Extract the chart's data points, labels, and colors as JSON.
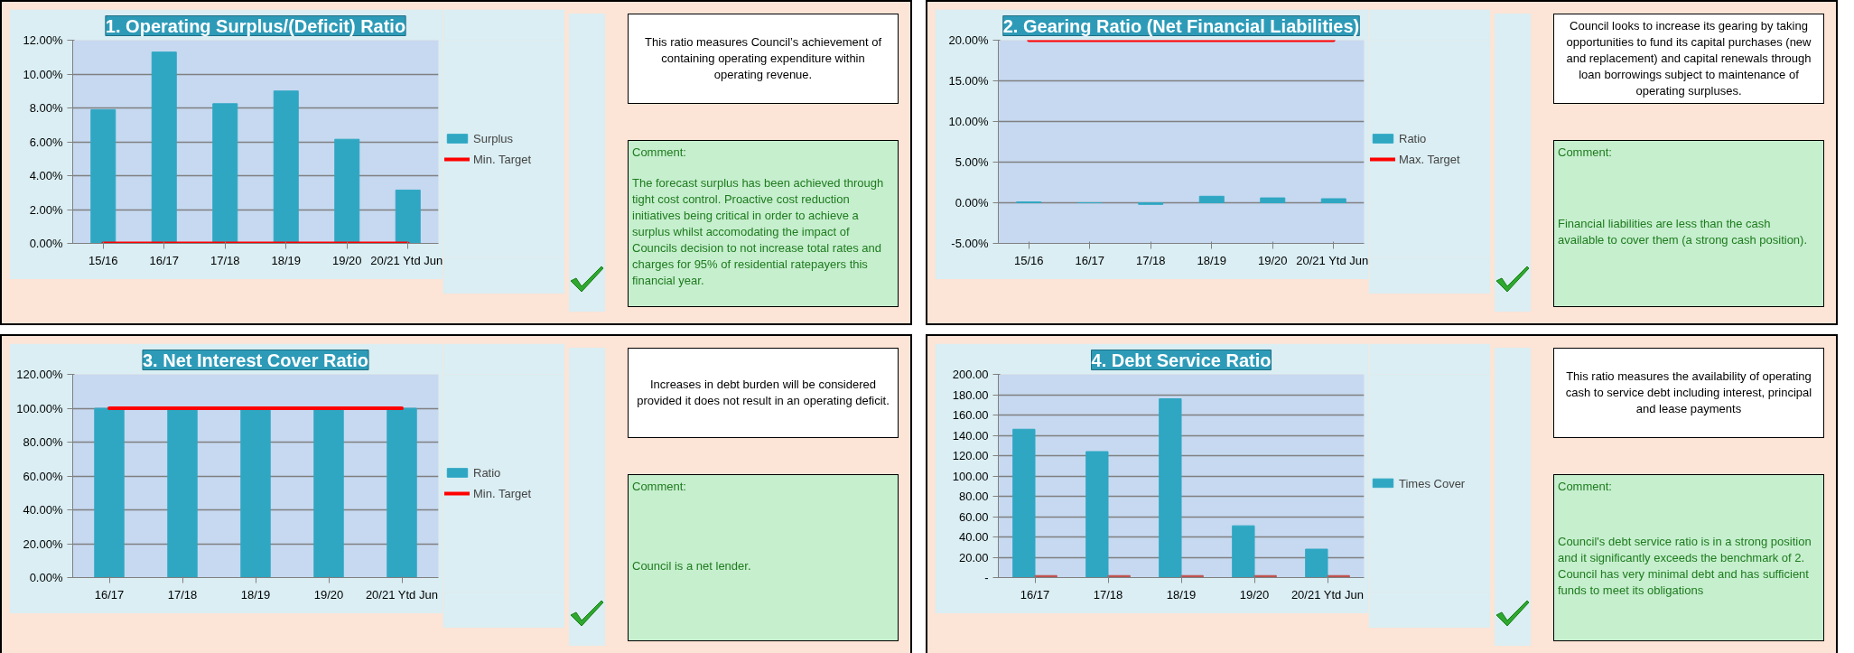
{
  "chart_data": [
    {
      "type": "bar",
      "title": "1. Operating Surplus/(Deficit) Ratio",
      "categories": [
        "15/16",
        "16/17",
        "17/18",
        "18/19",
        "19/20",
        "20/21 Ytd Jun"
      ],
      "series": [
        {
          "name": "Surplus",
          "color": "#2fa7c3",
          "values": [
            7.9,
            11.3,
            8.25,
            9.0,
            6.15,
            3.15
          ]
        },
        {
          "name": "Min. Target",
          "type": "line",
          "color": "#ff0000",
          "values": [
            0,
            0,
            0,
            0,
            0,
            0
          ]
        }
      ],
      "ylim": [
        0,
        12
      ],
      "yticks": [
        {
          "value": 0,
          "label": "0.00%"
        },
        {
          "value": 2,
          "label": "2.00%"
        },
        {
          "value": 4,
          "label": "4.00%"
        },
        {
          "value": 6,
          "label": "6.00%"
        },
        {
          "value": 8,
          "label": "8.00%"
        },
        {
          "value": 10,
          "label": "10.00%"
        },
        {
          "value": 12,
          "label": "12.00%"
        }
      ],
      "grid": "y",
      "legend": "right",
      "annotations": [
        "This ratio measures Council’s achievement of containing operating expenditure within operating revenue.",
        "Comment:",
        "The  forecast surplus has been achieved through tight cost control. Proactive cost reduction initiatives being critical in order to achieve a surplus whilst accomodating the impact of Councils decision to not increase total rates and charges for 95% of residential ratepayers this financial year."
      ]
    },
    {
      "type": "bar",
      "title": "2. Gearing Ratio (Net Financial Liabilities)",
      "categories": [
        "15/16",
        "16/17",
        "17/18",
        "18/19",
        "19/20",
        "20/21 Ytd Jun"
      ],
      "series": [
        {
          "name": "Ratio",
          "color": "#2fa7c3",
          "values": [
            0.1,
            0.0,
            -0.2,
            0.8,
            0.6,
            0.5
          ]
        },
        {
          "name": "Max. Target",
          "type": "line",
          "color": "#ff0000",
          "values": [
            20,
            20,
            20,
            20,
            20,
            20
          ]
        }
      ],
      "ylim": [
        -5,
        20
      ],
      "yticks": [
        {
          "value": -5,
          "label": "-5.00%"
        },
        {
          "value": 0,
          "label": "0.00%"
        },
        {
          "value": 5,
          "label": "5.00%"
        },
        {
          "value": 10,
          "label": "10.00%"
        },
        {
          "value": 15,
          "label": "15.00%"
        },
        {
          "value": 20,
          "label": "20.00%"
        }
      ],
      "grid": "y",
      "legend": "right",
      "annotations": [
        "Council looks to increase its gearing by taking opportunities to fund its capital purchases (new and replacement) and capital renewals through loan borrowings subject to maintenance of operating surpluses.",
        "Comment:",
        "Financial liabilities are less than the cash available to cover them (a strong cash position)."
      ]
    },
    {
      "type": "bar",
      "title": "3. Net Interest Cover Ratio",
      "categories": [
        "16/17",
        "17/18",
        "18/19",
        "19/20",
        "20/21 Ytd Jun"
      ],
      "series": [
        {
          "name": "Ratio",
          "color": "#2fa7c3",
          "values": [
            100,
            100,
            100,
            100,
            100
          ]
        },
        {
          "name": "Min. Target",
          "type": "line",
          "color": "#ff0000",
          "values": [
            100,
            100,
            100,
            100,
            100
          ]
        }
      ],
      "ylim": [
        0,
        120
      ],
      "yticks": [
        {
          "value": 0,
          "label": "0.00%"
        },
        {
          "value": 20,
          "label": "20.00%"
        },
        {
          "value": 40,
          "label": "40.00%"
        },
        {
          "value": 60,
          "label": "60.00%"
        },
        {
          "value": 80,
          "label": "80.00%"
        },
        {
          "value": 100,
          "label": "100.00%"
        },
        {
          "value": 120,
          "label": "120.00%"
        }
      ],
      "grid": "y",
      "legend": "right",
      "annotations": [
        "Increases in debt burden will be considered provided it does not result in an operating deficit.",
        "Comment:",
        "Council is a net lender."
      ]
    },
    {
      "type": "bar",
      "title": "4. Debt Service Ratio",
      "categories": [
        "16/17",
        "17/18",
        "18/19",
        "19/20",
        "20/21 Ytd Jun"
      ],
      "series": [
        {
          "name": "Times Cover",
          "color": "#2fa7c3",
          "values": [
            146,
            124,
            176,
            51,
            28
          ]
        },
        {
          "color": "#c0504d",
          "values": [
            2,
            2,
            2,
            2,
            2
          ]
        }
      ],
      "ylim": [
        0,
        200
      ],
      "yticks": [
        {
          "value": 0,
          "label": "-"
        },
        {
          "value": 20,
          "label": "20.00"
        },
        {
          "value": 40,
          "label": "40.00"
        },
        {
          "value": 60,
          "label": "60.00"
        },
        {
          "value": 80,
          "label": "80.00"
        },
        {
          "value": 100,
          "label": "100.00"
        },
        {
          "value": 120,
          "label": "120.00"
        },
        {
          "value": 140,
          "label": "140.00"
        },
        {
          "value": 160,
          "label": "160.00"
        },
        {
          "value": 180,
          "label": "180.00"
        },
        {
          "value": 200,
          "label": "200.00"
        }
      ],
      "grid": "y",
      "legend": "right",
      "annotations": [
        "This ratio measures the availability of operating cash to service debt including interest, principal and lease payments",
        "Comment:",
        "Council's debt service ratio is in a strong position and it significantly exceeds the benchmark of 2. Council has very minimal debt and has sufficient funds to meet its obligations"
      ]
    }
  ]
}
